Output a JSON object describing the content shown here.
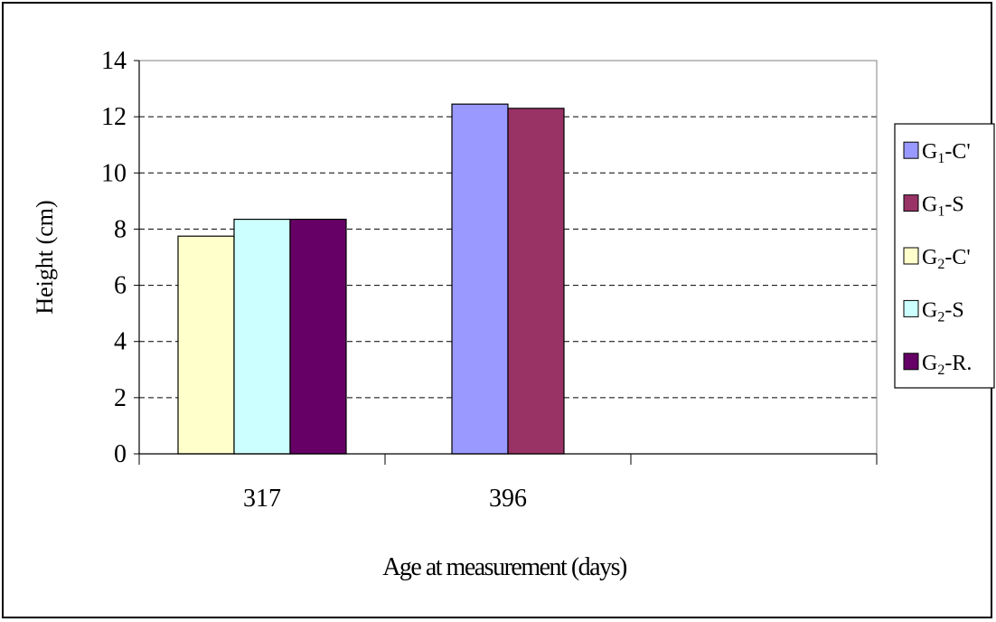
{
  "chart_data": {
    "type": "bar",
    "categories": [
      "317",
      "396"
    ],
    "series": [
      {
        "name": "G1-C",
        "legend_base": "G",
        "legend_sub": "1",
        "legend_suffix": "-C'",
        "color": "#9999ff",
        "values": [
          null,
          12.45
        ]
      },
      {
        "name": "G1-S",
        "legend_base": "G",
        "legend_sub": "1",
        "legend_suffix": "-S",
        "color": "#993366",
        "values": [
          null,
          12.3
        ]
      },
      {
        "name": "G2-C",
        "legend_base": "G",
        "legend_sub": "2",
        "legend_suffix": "-C'",
        "color": "#ffffcc",
        "values": [
          7.75,
          null
        ]
      },
      {
        "name": "G2-S",
        "legend_base": "G",
        "legend_sub": "2",
        "legend_suffix": "-S",
        "color": "#ccffff",
        "values": [
          8.35,
          null
        ]
      },
      {
        "name": "G2-R",
        "legend_base": "G",
        "legend_sub": "2",
        "legend_suffix": "-R.",
        "color": "#660066",
        "values": [
          8.35,
          null
        ]
      }
    ],
    "xlabel": "Age at measurement (days)",
    "ylabel": "Height (cm)",
    "ylim": [
      0,
      14
    ],
    "yticks": [
      0,
      2,
      4,
      6,
      8,
      10,
      12,
      14
    ],
    "grid": true,
    "grid_style": "dashed",
    "legend_position": "right"
  }
}
